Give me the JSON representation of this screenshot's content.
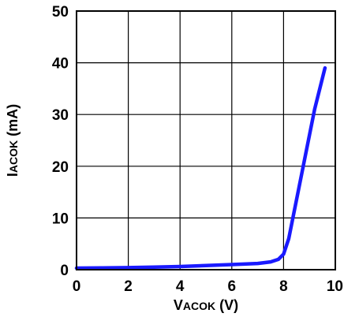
{
  "chart_data": {
    "type": "line",
    "title": "",
    "xlabel": {
      "main": "V",
      "sub": "ACOK",
      "unit": " (V)"
    },
    "ylabel": {
      "main": "I",
      "sub": "ACOK",
      "unit": " (mA)"
    },
    "xlim": [
      0,
      10
    ],
    "ylim": [
      0,
      50
    ],
    "xticks": [
      0,
      2,
      4,
      6,
      8,
      10
    ],
    "yticks": [
      0,
      10,
      20,
      30,
      40,
      50
    ],
    "x_tick_labels": [
      "0",
      "2",
      "4",
      "6",
      "8",
      "10"
    ],
    "y_tick_labels": [
      "0",
      "10",
      "20",
      "30",
      "40",
      "50"
    ],
    "grid": true,
    "series": [
      {
        "color": "#1a1aff",
        "points": [
          [
            0,
            0.3
          ],
          [
            1,
            0.35
          ],
          [
            2,
            0.4
          ],
          [
            3,
            0.5
          ],
          [
            4,
            0.6
          ],
          [
            5,
            0.8
          ],
          [
            6,
            1.0
          ],
          [
            7,
            1.2
          ],
          [
            7.5,
            1.5
          ],
          [
            7.8,
            2.0
          ],
          [
            8.0,
            3.0
          ],
          [
            8.2,
            6.0
          ],
          [
            8.4,
            11.0
          ],
          [
            8.6,
            16.0
          ],
          [
            8.8,
            21.0
          ],
          [
            9.0,
            26.0
          ],
          [
            9.2,
            31.0
          ],
          [
            9.4,
            35.0
          ],
          [
            9.6,
            39.0
          ]
        ]
      }
    ]
  }
}
